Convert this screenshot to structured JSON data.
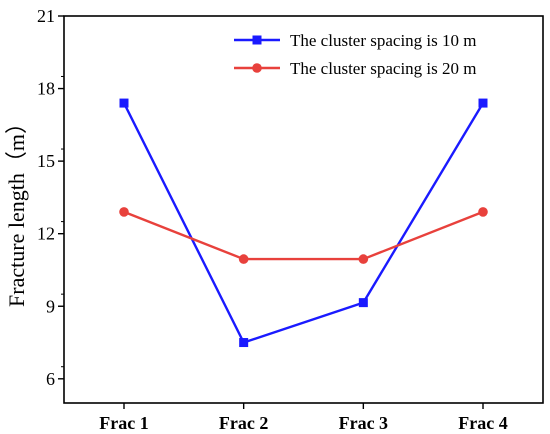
{
  "chart_data": {
    "type": "line",
    "title": "",
    "xlabel": "",
    "ylabel": "Fracture length（m）",
    "categories": [
      "Frac 1",
      "Frac 2",
      "Frac 3",
      "Frac 4"
    ],
    "ylim": [
      5,
      21
    ],
    "yticks": [
      6,
      9,
      12,
      15,
      18,
      21
    ],
    "grid": false,
    "legend_position": "top-right",
    "series": [
      {
        "name": "The cluster spacing is 10 m",
        "values": [
          17.4,
          7.5,
          9.15,
          17.4
        ],
        "color": "#1a1aff",
        "marker": "square"
      },
      {
        "name": "The cluster spacing is 20 m",
        "values": [
          12.9,
          10.95,
          10.95,
          12.9
        ],
        "color": "#e8413c",
        "marker": "circle"
      }
    ]
  }
}
